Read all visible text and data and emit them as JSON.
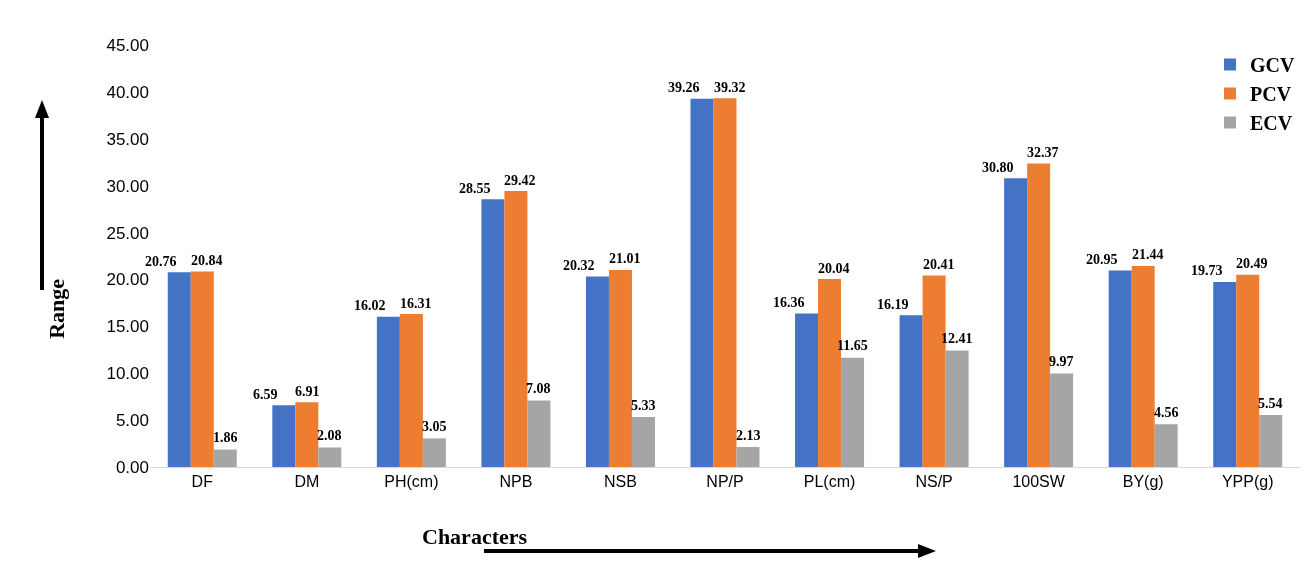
{
  "chart_data": {
    "type": "bar",
    "xlabel": "Characters",
    "ylabel": "Range",
    "categories": [
      "DF",
      "DM",
      "PH(cm)",
      "NPB",
      "NSB",
      "NP/P",
      "PL(cm)",
      "NS/P",
      "100SW",
      "BY(g)",
      "YPP(g)"
    ],
    "series": [
      {
        "name": "GCV",
        "color": "#4472c4",
        "values": [
          20.76,
          6.59,
          16.02,
          28.55,
          20.32,
          39.26,
          16.36,
          16.19,
          30.8,
          20.95,
          19.73
        ],
        "value_labels": [
          "20.76",
          "6.59",
          "16.02",
          "28.55",
          "20.32",
          "39.26",
          "16.36",
          "16.19",
          "30.80",
          "20.95",
          "19.73"
        ]
      },
      {
        "name": "PCV",
        "color": "#ed7d31",
        "values": [
          20.84,
          6.91,
          16.31,
          29.42,
          21.01,
          39.32,
          20.04,
          20.41,
          32.37,
          21.44,
          20.49
        ],
        "value_labels": [
          "20.84",
          "6.91",
          "16.31",
          "29.42",
          "21.01",
          "39.32",
          "20.04",
          "20.41",
          "32.37",
          "21.44",
          "20.49"
        ]
      },
      {
        "name": "ECV",
        "color": "#a5a5a5",
        "values": [
          1.86,
          2.08,
          3.05,
          7.08,
          5.33,
          2.13,
          11.65,
          12.41,
          9.97,
          4.56,
          5.54
        ],
        "value_labels": [
          "1.86",
          "2.08",
          "3.05",
          "7.08",
          "5.33",
          "2.13",
          "11.65",
          "12.41",
          "9.97",
          "4.56",
          "5.54"
        ]
      }
    ],
    "ylim": [
      0,
      45
    ],
    "yticks": [
      {
        "value": 0,
        "label": "0.00"
      },
      {
        "value": 5,
        "label": "5.00"
      },
      {
        "value": 10,
        "label": "10.00"
      },
      {
        "value": 15,
        "label": "15.00"
      },
      {
        "value": 20,
        "label": "20.00"
      },
      {
        "value": 25,
        "label": "25.00"
      },
      {
        "value": 30,
        "label": "30.00"
      },
      {
        "value": 35,
        "label": "35.00"
      },
      {
        "value": 40,
        "label": "40.00"
      },
      {
        "value": 45,
        "label": "45.00"
      }
    ],
    "grid": false,
    "legend": "top right"
  }
}
